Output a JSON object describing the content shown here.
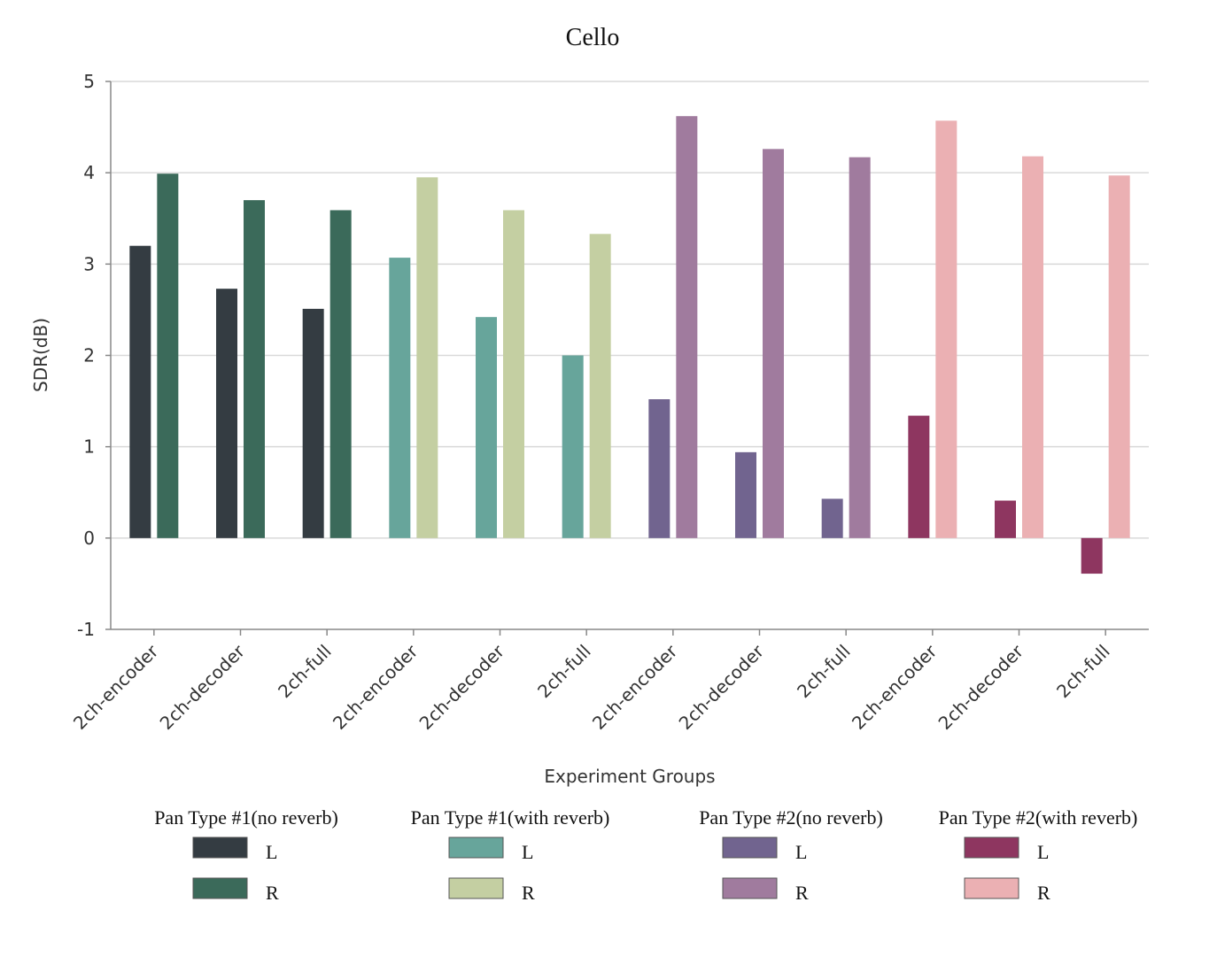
{
  "chart_data": {
    "type": "bar",
    "title": "Cello",
    "xlabel": "Experiment Groups",
    "ylabel": "SDR(dB)",
    "ylim": [
      -1,
      5
    ],
    "yticks": [
      "-1",
      "0",
      "1",
      "2",
      "3",
      "4",
      "5"
    ],
    "grid": true,
    "legend_position": "bottom",
    "categories": [
      "2ch-encoder",
      "2ch-decoder",
      "2ch-full",
      "2ch-encoder",
      "2ch-decoder",
      "2ch-full",
      "2ch-encoder",
      "2ch-decoder",
      "2ch-full",
      "2ch-encoder",
      "2ch-decoder",
      "2ch-full"
    ],
    "groups": [
      {
        "name": "Pan Type #1(no reverb)",
        "series": [
          {
            "name": "L",
            "color": "#343c42",
            "values": [
              3.2,
              2.73,
              2.51
            ]
          },
          {
            "name": "R",
            "color": "#3b6a5a",
            "values": [
              3.99,
              3.7,
              3.59
            ]
          }
        ]
      },
      {
        "name": "Pan Type #1(with reverb)",
        "series": [
          {
            "name": "L",
            "color": "#67a59b",
            "values": [
              3.07,
              2.42,
              2.0
            ]
          },
          {
            "name": "R",
            "color": "#c4cfa2",
            "values": [
              3.95,
              3.59,
              3.33
            ]
          }
        ]
      },
      {
        "name": "Pan Type #2(no reverb)",
        "series": [
          {
            "name": "L",
            "color": "#71648f",
            "values": [
              1.52,
              0.94,
              0.43
            ]
          },
          {
            "name": "R",
            "color": "#a07b9e",
            "values": [
              4.62,
              4.26,
              4.17
            ]
          }
        ]
      },
      {
        "name": "Pan Type #2(with reverb)",
        "series": [
          {
            "name": "L",
            "color": "#8e3660",
            "values": [
              1.34,
              0.41,
              -0.39
            ]
          },
          {
            "name": "R",
            "color": "#ebb0b3",
            "values": [
              4.57,
              4.18,
              3.97
            ]
          }
        ]
      }
    ]
  },
  "colors": {
    "grid": "#d9d9d9",
    "axis": "#888888"
  }
}
